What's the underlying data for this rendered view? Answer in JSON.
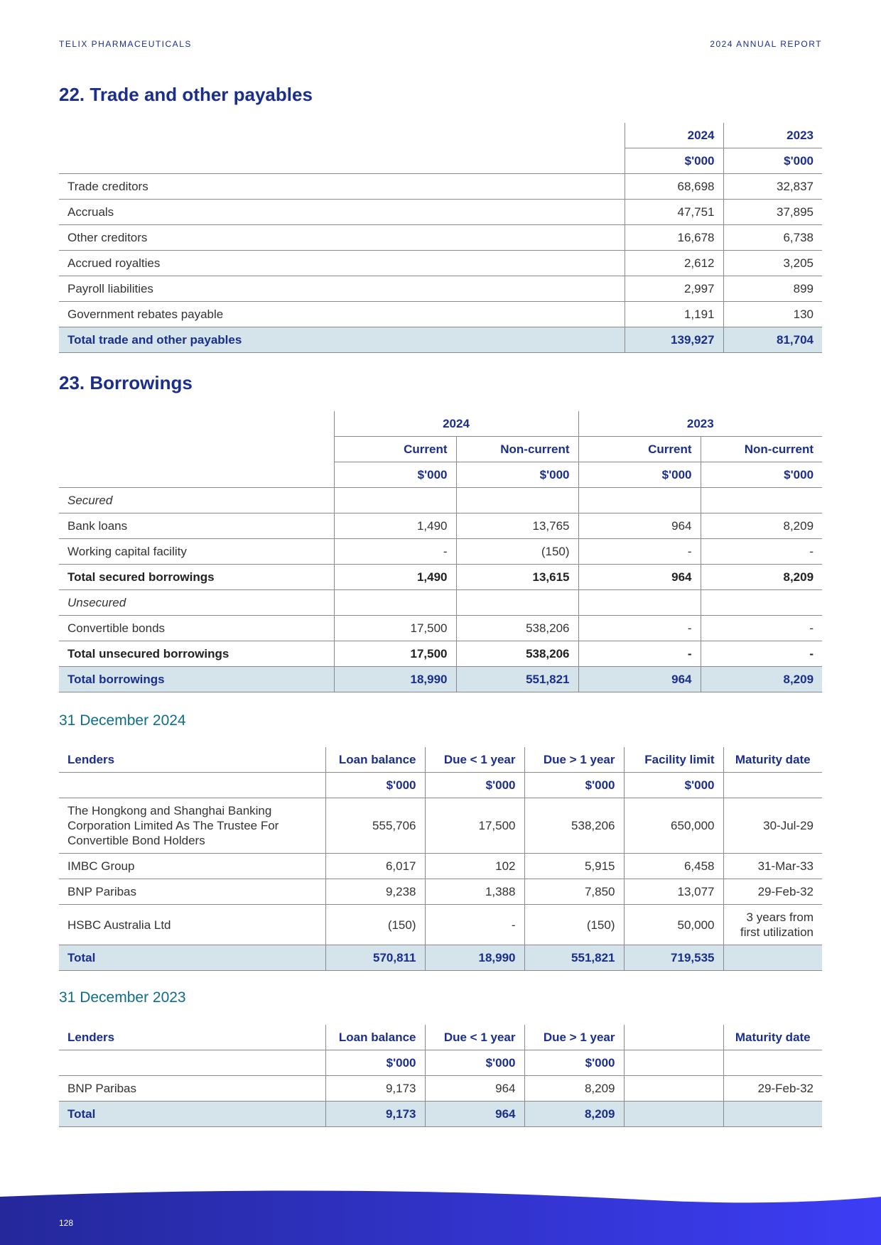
{
  "header": {
    "left": "TELIX PHARMACEUTICALS",
    "right": "2024 ANNUAL REPORT"
  },
  "payables": {
    "title": "22. Trade and other payables",
    "years": [
      "2024",
      "2023"
    ],
    "units": [
      "$'000",
      "$'000"
    ],
    "rows": [
      [
        "Trade creditors",
        "68,698",
        "32,837"
      ],
      [
        "Accruals",
        "47,751",
        "37,895"
      ],
      [
        "Other creditors",
        "16,678",
        "6,738"
      ],
      [
        "Accrued royalties",
        "2,612",
        "3,205"
      ],
      [
        "Payroll liabilities",
        "2,997",
        "899"
      ],
      [
        "Government rebates payable",
        "1,191",
        "130"
      ]
    ],
    "total": [
      "Total trade and other payables",
      "139,927",
      "81,704"
    ]
  },
  "borrowings": {
    "title": "23. Borrowings",
    "years": [
      "2024",
      "2023"
    ],
    "subheaders": [
      "Current",
      "Non-current",
      "Current",
      "Non-current"
    ],
    "units": [
      "$'000",
      "$'000",
      "$'000",
      "$'000"
    ],
    "groups": [
      {
        "label": "Secured",
        "rows": [
          [
            "Bank loans",
            "1,490",
            "13,765",
            "964",
            "8,209"
          ],
          [
            "Working capital facility",
            "-",
            "(150)",
            "-",
            "-"
          ]
        ],
        "total": [
          "Total secured borrowings",
          "1,490",
          "13,615",
          "964",
          "8,209"
        ]
      },
      {
        "label": "Unsecured",
        "rows": [
          [
            "Convertible bonds",
            "17,500",
            "538,206",
            "-",
            "-"
          ]
        ],
        "total": [
          "Total unsecured borrowings",
          "17,500",
          "538,206",
          "-",
          "-"
        ]
      }
    ],
    "total": [
      "Total borrowings",
      "18,990",
      "551,821",
      "964",
      "8,209"
    ]
  },
  "lenders_2024": {
    "title": "31 December 2024",
    "columns": [
      "Lenders",
      "Loan balance",
      "Due < 1 year",
      "Due > 1 year",
      "Facility limit",
      "Maturity date"
    ],
    "units": [
      null,
      "$'000",
      "$'000",
      "$'000",
      "$'000",
      null
    ],
    "rows": [
      [
        "The Hongkong and Shanghai Banking Corporation Limited As The Trustee For Convertible Bond Holders",
        "555,706",
        "17,500",
        "538,206",
        "650,000",
        "30-Jul-29"
      ],
      [
        "IMBC Group",
        "6,017",
        "102",
        "5,915",
        "6,458",
        "31-Mar-33"
      ],
      [
        "BNP Paribas",
        "9,238",
        "1,388",
        "7,850",
        "13,077",
        "29-Feb-32"
      ],
      [
        "HSBC Australia Ltd",
        "(150)",
        "-",
        "(150)",
        "50,000",
        "3 years from first utilization"
      ]
    ],
    "total": [
      "Total",
      "570,811",
      "18,990",
      "551,821",
      "719,535",
      null
    ]
  },
  "lenders_2023": {
    "title": "31 December 2023",
    "columns": [
      "Lenders",
      "Loan balance",
      "Due < 1 year",
      "Due > 1 year",
      null,
      "Maturity date"
    ],
    "units": [
      null,
      "$'000",
      "$'000",
      "$'000",
      null,
      null
    ],
    "rows": [
      [
        "BNP Paribas",
        "9,173",
        "964",
        "8,209",
        null,
        "29-Feb-32"
      ]
    ],
    "total": [
      "Total",
      "9,173",
      "964",
      "8,209",
      null,
      null
    ]
  },
  "footer": {
    "page": "128"
  }
}
